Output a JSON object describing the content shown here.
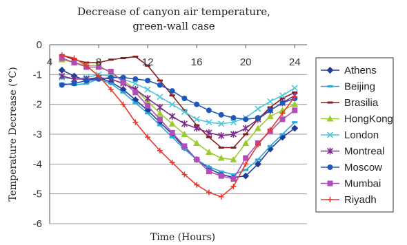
{
  "chart_data": {
    "type": "line",
    "title": [
      "Decrease of canyon air temperature,",
      "green-wall case"
    ],
    "xlabel": "Time (Hours)",
    "ylabel": "Temperature Decrease (°C)",
    "xlim": [
      4,
      25
    ],
    "ylim": [
      -6,
      0
    ],
    "xticks": [
      "4",
      "8",
      "12",
      "16",
      "20",
      "24"
    ],
    "xtick_values": [
      4,
      8,
      12,
      16,
      20,
      24
    ],
    "yticks": [
      "0",
      "-1",
      "-2",
      "-3",
      "-4",
      "-5",
      "-6"
    ],
    "ytick_values": [
      0,
      -1,
      -2,
      -3,
      -4,
      -5,
      -6
    ],
    "grid": "horizontal",
    "legend_position": "right",
    "x": [
      5,
      6,
      7,
      8,
      9,
      10,
      11,
      12,
      13,
      14,
      15,
      16,
      17,
      18,
      19,
      20,
      21,
      22,
      23,
      24
    ],
    "series": [
      {
        "name": "Athens",
        "color": "#1f3c99",
        "marker": "diamond",
        "values": [
          -0.85,
          -1.05,
          -1.2,
          -1.1,
          -1.25,
          -1.5,
          -1.85,
          -2.2,
          -2.6,
          -3.0,
          -3.45,
          -3.85,
          -4.15,
          -4.35,
          -4.45,
          -4.4,
          -4.0,
          -3.5,
          -3.1,
          -2.8
        ]
      },
      {
        "name": "Beijing",
        "color": "#2aa6d8",
        "marker": "dash",
        "values": [
          -1.3,
          -1.35,
          -1.3,
          -1.15,
          -1.3,
          -1.6,
          -1.95,
          -2.3,
          -2.7,
          -3.1,
          -3.5,
          -3.85,
          -4.1,
          -4.25,
          -4.35,
          -4.2,
          -3.85,
          -3.4,
          -3.0,
          -2.6
        ]
      },
      {
        "name": "Brasilia",
        "color": "#8a1c1c",
        "marker": "dash",
        "values": [
          -0.35,
          -0.5,
          -0.6,
          -0.6,
          -0.5,
          -0.45,
          -0.4,
          -0.7,
          -1.2,
          -1.7,
          -2.2,
          -2.7,
          -3.1,
          -3.45,
          -3.45,
          -3.0,
          -2.5,
          -2.1,
          -1.8,
          -1.6
        ]
      },
      {
        "name": "HongKong",
        "color": "#9ccc2c",
        "marker": "triangle",
        "values": [
          -0.5,
          -0.6,
          -0.7,
          -0.7,
          -0.95,
          -1.2,
          -1.5,
          -1.9,
          -2.3,
          -2.65,
          -3.0,
          -3.3,
          -3.6,
          -3.8,
          -3.85,
          -3.3,
          -2.8,
          -2.4,
          -2.2,
          -2.0
        ]
      },
      {
        "name": "London",
        "color": "#4fc6d9",
        "marker": "x",
        "values": [
          -1.1,
          -1.15,
          -1.1,
          -1.0,
          -1.05,
          -1.15,
          -1.3,
          -1.5,
          -1.75,
          -2.0,
          -2.25,
          -2.5,
          -2.6,
          -2.65,
          -2.6,
          -2.45,
          -2.15,
          -1.9,
          -1.7,
          -1.45
        ]
      },
      {
        "name": "Montreal",
        "color": "#7a2a8a",
        "marker": "star",
        "values": [
          -1.05,
          -1.15,
          -1.15,
          -1.1,
          -1.15,
          -1.3,
          -1.5,
          -1.8,
          -2.1,
          -2.4,
          -2.65,
          -2.8,
          -2.95,
          -3.05,
          -3.0,
          -2.8,
          -2.5,
          -2.2,
          -1.95,
          -1.7
        ]
      },
      {
        "name": "Moscow",
        "color": "#1d57b8",
        "marker": "circle",
        "values": [
          -1.35,
          -1.3,
          -1.2,
          -1.15,
          -1.1,
          -1.1,
          -1.15,
          -1.2,
          -1.35,
          -1.55,
          -1.8,
          -2.0,
          -2.2,
          -2.35,
          -2.45,
          -2.5,
          -2.45,
          -2.2,
          -1.95,
          -1.8
        ]
      },
      {
        "name": "Mumbai",
        "color": "#b14cb8",
        "marker": "square",
        "values": [
          -0.45,
          -0.6,
          -0.75,
          -0.75,
          -0.9,
          -1.25,
          -1.6,
          -2.05,
          -2.5,
          -2.95,
          -3.4,
          -3.85,
          -4.25,
          -4.4,
          -4.5,
          -3.8,
          -3.3,
          -2.9,
          -2.5,
          -2.2
        ]
      },
      {
        "name": "Riyadh",
        "color": "#e8382e",
        "marker": "plus",
        "values": [
          -0.35,
          -0.45,
          -0.7,
          -1.05,
          -1.5,
          -2.0,
          -2.6,
          -3.1,
          -3.55,
          -3.95,
          -4.35,
          -4.7,
          -4.95,
          -5.1,
          -4.75,
          -4.0,
          -3.35,
          -2.85,
          -2.3,
          -1.75
        ]
      }
    ]
  }
}
